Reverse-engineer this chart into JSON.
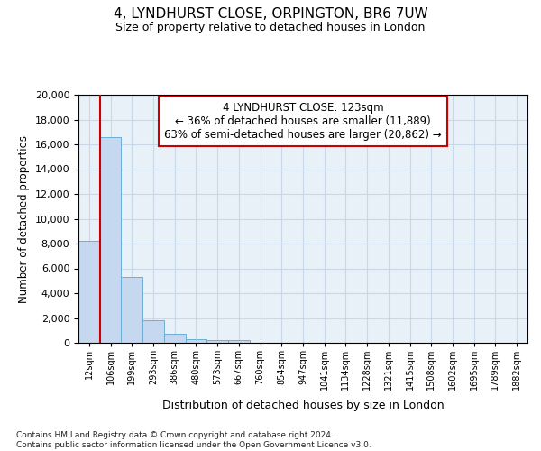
{
  "title1": "4, LYNDHURST CLOSE, ORPINGTON, BR6 7UW",
  "title2": "Size of property relative to detached houses in London",
  "xlabel": "Distribution of detached houses by size in London",
  "ylabel": "Number of detached properties",
  "bin_labels": [
    "12sqm",
    "106sqm",
    "199sqm",
    "293sqm",
    "386sqm",
    "480sqm",
    "573sqm",
    "667sqm",
    "760sqm",
    "854sqm",
    "947sqm",
    "1041sqm",
    "1134sqm",
    "1228sqm",
    "1321sqm",
    "1415sqm",
    "1508sqm",
    "1602sqm",
    "1695sqm",
    "1789sqm",
    "1882sqm"
  ],
  "bar_heights": [
    8200,
    16600,
    5300,
    1850,
    750,
    300,
    250,
    220,
    0,
    0,
    0,
    0,
    0,
    0,
    0,
    0,
    0,
    0,
    0,
    0,
    0
  ],
  "bar_color": "#c5d8f0",
  "bar_edge_color": "#6baed6",
  "property_line_color": "#cc0000",
  "annotation_text": "4 LYNDHURST CLOSE: 123sqm\n← 36% of detached houses are smaller (11,889)\n63% of semi-detached houses are larger (20,862) →",
  "ann_box_facecolor": "#ffffff",
  "ann_box_edgecolor": "#cc0000",
  "ylim_max": 20000,
  "yticks": [
    0,
    2000,
    4000,
    6000,
    8000,
    10000,
    12000,
    14000,
    16000,
    18000,
    20000
  ],
  "plot_bg": "#e8f0f8",
  "grid_color": "#c8d8e8",
  "footnote": "Contains HM Land Registry data © Crown copyright and database right 2024.\nContains public sector information licensed under the Open Government Licence v3.0."
}
